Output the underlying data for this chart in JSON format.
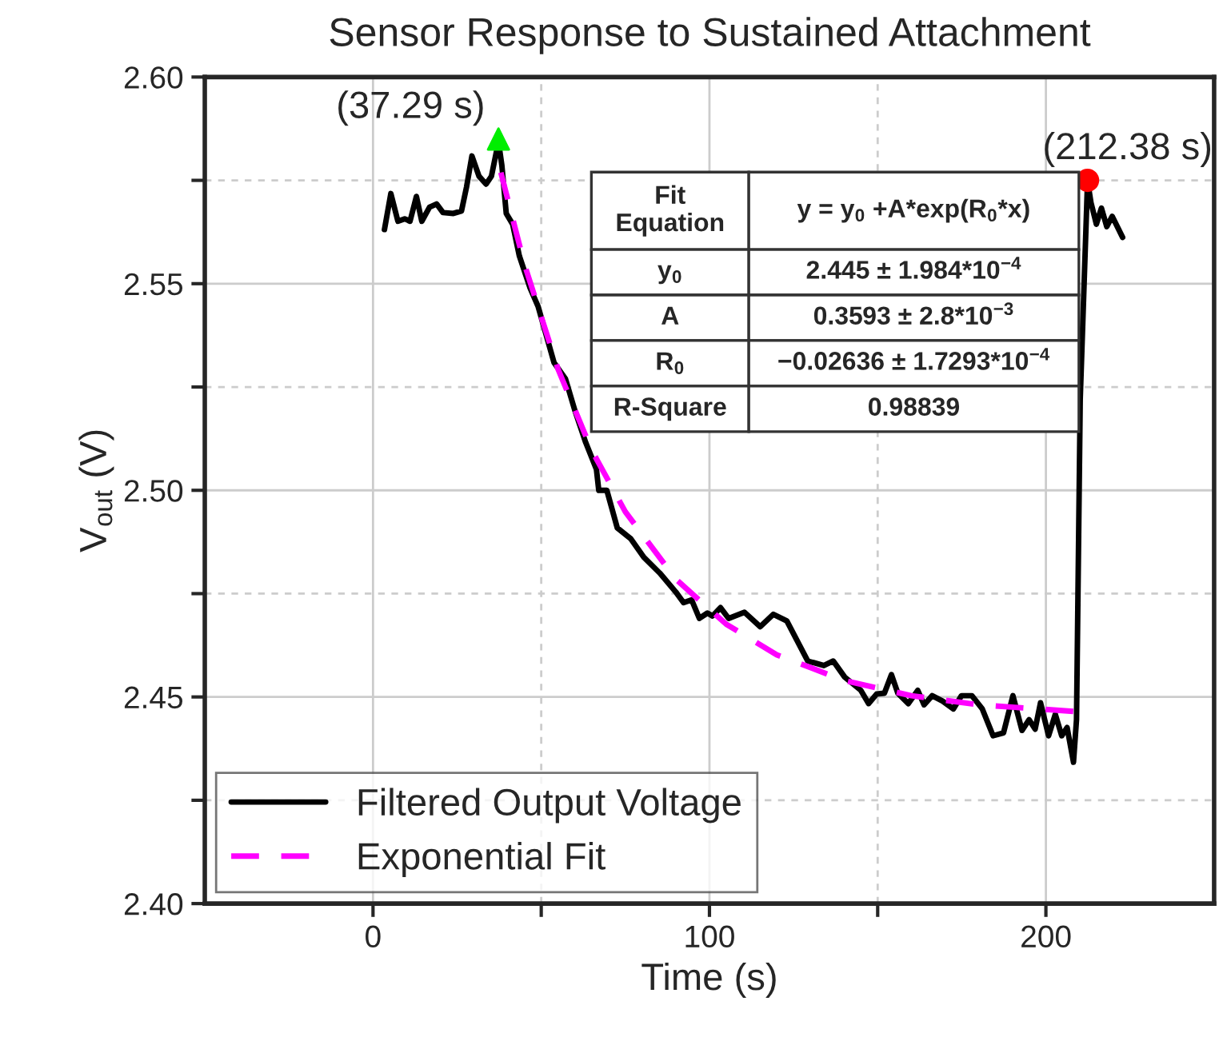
{
  "chart_data": {
    "type": "line",
    "title": "Sensor Response to Sustained Attachment",
    "xlabel": "Time (s)",
    "ylabel": "V$_{out}$ (V)",
    "xlim": [
      -50,
      250
    ],
    "ylim": [
      2.4,
      2.6
    ],
    "xticks": [
      0,
      {
        "value": 50,
        "label": null
      },
      100,
      {
        "value": 150,
        "label": null
      },
      200
    ],
    "yticks": [
      {
        "value": 2.4,
        "label": "2.40"
      },
      {
        "value": 2.425,
        "label": null
      },
      {
        "value": 2.45,
        "label": "2.45"
      },
      {
        "value": 2.475,
        "label": null
      },
      {
        "value": 2.5,
        "label": "2.50"
      },
      {
        "value": 2.525,
        "label": null
      },
      {
        "value": 2.55,
        "label": "2.55"
      },
      {
        "value": 2.575,
        "label": null
      },
      {
        "value": 2.6,
        "label": "2.60"
      }
    ],
    "grid": true,
    "legend": "bottom left",
    "series": [
      {
        "name": "Filtered Output Voltage",
        "type": "line",
        "color": "#000000",
        "line_style": "solid",
        "x": [
          3.4,
          5.3,
          7.4,
          9.4,
          11.0,
          12.9,
          14.5,
          16.8,
          18.9,
          20.8,
          23.9,
          26.3,
          27.8,
          29.4,
          31.5,
          33.6,
          35.2,
          37.29,
          38.3,
          39.6,
          41.5,
          43.5,
          46.7,
          49.1,
          53.8,
          57.2,
          60.0,
          63.2,
          66.4,
          67.1,
          69.5,
          72.6,
          76.6,
          80.5,
          85.2,
          90.0,
          92.3,
          94.7,
          97.0,
          99.4,
          100.9,
          103.3,
          105.7,
          110.4,
          115.1,
          119.0,
          123.0,
          129.2,
          134.0,
          136.8,
          140.2,
          145.0,
          147.3,
          149.7,
          152.0,
          154.1,
          156.0,
          159.1,
          161.9,
          163.8,
          166.2,
          169.3,
          172.5,
          174.9,
          178.0,
          181.1,
          184.3,
          187.4,
          190.2,
          192.9,
          195.0,
          196.8,
          198.4,
          200.8,
          202.8,
          204.7,
          206.3,
          208.2,
          209.1,
          210.2,
          212.38,
          213.4,
          215.0,
          216.5,
          218.1,
          219.7,
          222.8
        ],
        "values": [
          2.5631,
          2.5718,
          2.5651,
          2.5657,
          2.5651,
          2.5711,
          2.5651,
          2.5685,
          2.5693,
          2.5672,
          2.567,
          2.5676,
          2.5734,
          2.5809,
          2.576,
          2.5741,
          2.576,
          2.5844,
          2.5786,
          2.567,
          2.5644,
          2.5567,
          2.5489,
          2.5444,
          2.5309,
          2.527,
          2.5193,
          2.5116,
          2.5051,
          2.5,
          2.5,
          2.4909,
          2.4883,
          2.4838,
          2.48,
          2.4754,
          2.4728,
          2.4735,
          2.469,
          2.4703,
          2.4696,
          2.4716,
          2.469,
          2.4705,
          2.467,
          2.47,
          2.4684,
          2.4587,
          2.4576,
          2.4587,
          2.4548,
          2.4516,
          2.4484,
          2.4507,
          2.4509,
          2.4554,
          2.4509,
          2.4484,
          2.4516,
          2.4481,
          2.4503,
          2.449,
          2.4471,
          2.4503,
          2.4503,
          2.4471,
          2.4406,
          2.4413,
          2.4503,
          2.4419,
          2.4445,
          2.4422,
          2.4486,
          2.4406,
          2.4458,
          2.4406,
          2.4426,
          2.4342,
          2.4445,
          2.5219,
          2.5749,
          2.5696,
          2.5644,
          2.5683,
          2.5638,
          2.5663,
          2.5612
        ]
      },
      {
        "name": "Exponential Fit",
        "type": "line",
        "color": "#ff00ff",
        "line_style": "dashed",
        "x": [
          38,
          45,
          55,
          65,
          75,
          90,
          105,
          120,
          140,
          160,
          180,
          210
        ],
        "values": [
          2.5769,
          2.5547,
          2.5293,
          2.5097,
          2.4948,
          2.4785,
          2.4676,
          2.4602,
          2.454,
          2.4503,
          2.4481,
          2.4464
        ]
      },
      {
        "type": "scatter",
        "color": "#00ee00",
        "marker": "triangle",
        "x": [
          37.29
        ],
        "values": [
          2.585
        ]
      },
      {
        "type": "scatter",
        "color": "#ff0000",
        "marker": "circle",
        "x": [
          212.38
        ],
        "values": [
          2.575
        ]
      }
    ],
    "annotations": [
      {
        "text": "(37.29 s)",
        "x": 37.29,
        "y": 2.585
      },
      {
        "text": "(212.38 s)",
        "x": 212.38,
        "y": 2.575
      },
      "Fit\nEquation",
      "y = y$_{0}$ +A*exp(R$_{0}$*x)",
      "y$_{0}$",
      "2.445 ± 1.984*10$^{−4}$",
      "A",
      "0.3593 ± 2.8*10$^{−3}$",
      "R$_{0}$",
      "−0.02636 ± 1.7293*10$^{−4}$",
      "R-Square",
      "0.98839"
    ]
  }
}
